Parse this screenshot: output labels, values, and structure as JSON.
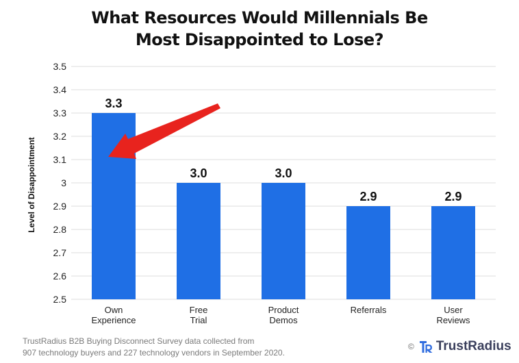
{
  "chart_data": {
    "type": "bar",
    "title_lines": [
      "What Resources Would Millennials Be",
      "Most Disappointed to Lose?"
    ],
    "ylabel": "Level of Disappointment",
    "xlabel": "",
    "ylim": [
      2.5,
      3.5
    ],
    "yticks": [
      "2.5",
      "2.6",
      "2.7",
      "2.8",
      "2.9",
      "3",
      "3.1",
      "3.2",
      "3.3",
      "3.4",
      "3.5"
    ],
    "ytick_values": [
      2.5,
      2.6,
      2.7,
      2.8,
      2.9,
      3.0,
      3.1,
      3.2,
      3.3,
      3.4,
      3.5
    ],
    "categories": [
      [
        "Own",
        "Experience"
      ],
      [
        "Free",
        "Trial"
      ],
      [
        "Product",
        "Demos"
      ],
      [
        "Referrals"
      ],
      [
        "User",
        "Reviews"
      ]
    ],
    "values": [
      3.3,
      3.0,
      3.0,
      2.9,
      2.9
    ],
    "data_labels": [
      "3.3",
      "3.0",
      "3.0",
      "2.9",
      "2.9"
    ],
    "grid": true,
    "bar_color": "#1f6fe5",
    "annotation": {
      "type": "arrow",
      "color": "#e8231e",
      "points_to_category_index": 0
    }
  },
  "footer": {
    "source_line1": "TrustRadius B2B Buying Disconnect Survey data collected from",
    "source_line2": "907 technology buyers and 227 technology vendors in September 2020."
  },
  "brand": {
    "copyright": "©",
    "name": "TrustRadius",
    "logo_color": "#2f6cdf"
  }
}
